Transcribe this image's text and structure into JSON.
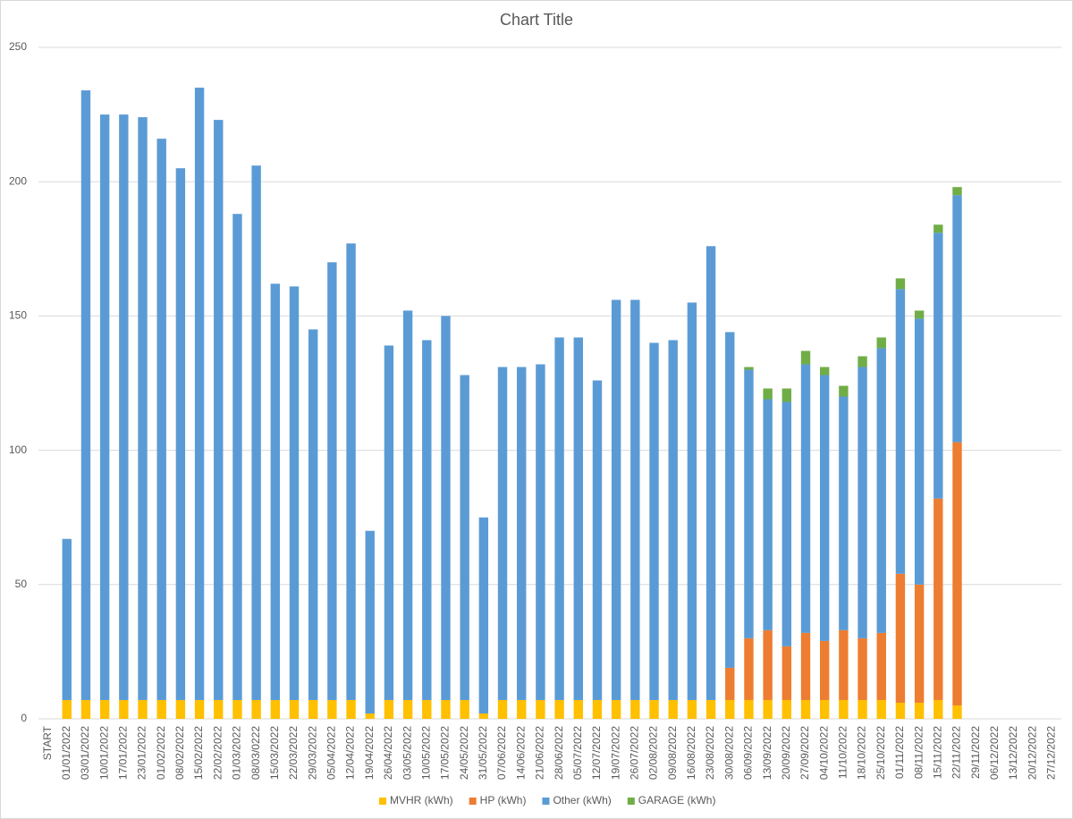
{
  "chart_data": {
    "type": "stacked_bar",
    "title": "Chart Title",
    "categories": [
      "START",
      "01/01/2022",
      "03/01/2022",
      "10/01/2022",
      "17/01/2022",
      "23/01/2022",
      "01/02/2022",
      "08/02/2022",
      "15/02/2022",
      "22/02/2022",
      "01/03/2022",
      "08/03/0222",
      "15/03/2022",
      "22/03/2022",
      "29/03/2022",
      "05/04/2022",
      "12/04/2022",
      "19/04/2022",
      "26/04/2022",
      "03/05/2022",
      "10/05/2022",
      "17/05/2022",
      "24/05/2022",
      "31/05/2022",
      "07/06/2022",
      "14/06/2022",
      "21/06/2022",
      "28/06/2022",
      "05/07/2022",
      "12/07/2022",
      "19/07/2022",
      "26/07/2022",
      "02/08/2022",
      "09/08/2022",
      "16/08/2022",
      "23/08/2022",
      "30/08/2022",
      "06/09/2022",
      "13/09/2022",
      "20/09/2022",
      "27/09/2022",
      "04/10/2022",
      "11/10/2022",
      "18/10/2022",
      "25/10/2022",
      "01/11/2022",
      "08/11/2022",
      "15/11/2022",
      "22/11/2022",
      "29/11/2022",
      "06/12/2022",
      "13/12/2022",
      "20/12/2022",
      "27/12/2022"
    ],
    "series": [
      {
        "name": "MVHR (kWh)",
        "color": "#ffc000",
        "values": [
          null,
          7,
          7,
          7,
          7,
          7,
          7,
          7,
          7,
          7,
          7,
          7,
          7,
          7,
          7,
          7,
          7,
          2,
          7,
          7,
          7,
          7,
          7,
          2,
          7,
          7,
          7,
          7,
          7,
          7,
          7,
          7,
          7,
          7,
          7,
          7,
          7,
          7,
          7,
          7,
          7,
          7,
          7,
          7,
          7,
          6,
          6,
          7,
          5,
          null,
          null,
          null,
          null,
          null
        ]
      },
      {
        "name": "HP (kWh)",
        "color": "#ed7d31",
        "values": [
          null,
          null,
          null,
          null,
          null,
          null,
          null,
          null,
          null,
          null,
          null,
          null,
          null,
          null,
          null,
          null,
          null,
          null,
          null,
          null,
          null,
          null,
          null,
          null,
          null,
          null,
          null,
          null,
          null,
          null,
          null,
          null,
          null,
          null,
          null,
          null,
          12,
          23,
          26,
          20,
          25,
          22,
          26,
          23,
          25,
          48,
          44,
          75,
          98,
          null,
          null,
          null,
          null,
          null
        ]
      },
      {
        "name": "Other (kWh)",
        "color": "#5b9bd5",
        "values": [
          null,
          60,
          227,
          218,
          218,
          217,
          209,
          198,
          228,
          216,
          181,
          199,
          155,
          154,
          138,
          163,
          170,
          68,
          132,
          145,
          134,
          143,
          121,
          73,
          124,
          124,
          125,
          135,
          135,
          119,
          149,
          149,
          133,
          134,
          148,
          169,
          125,
          100,
          86,
          91,
          100,
          99,
          87,
          101,
          106,
          106,
          99,
          99,
          92,
          null,
          null,
          null,
          null,
          null
        ]
      },
      {
        "name": "GARAGE (kWh)",
        "color": "#70ad47",
        "values": [
          null,
          null,
          null,
          null,
          null,
          null,
          null,
          null,
          null,
          null,
          null,
          null,
          null,
          null,
          null,
          null,
          null,
          null,
          null,
          null,
          null,
          null,
          null,
          null,
          null,
          null,
          null,
          null,
          null,
          null,
          null,
          null,
          null,
          null,
          null,
          null,
          null,
          1,
          4,
          5,
          5,
          3,
          4,
          4,
          4,
          4,
          3,
          3,
          3,
          null,
          null,
          null,
          null,
          null
        ]
      }
    ],
    "ylim": [
      0,
      250
    ],
    "yticks": [
      0,
      50,
      100,
      150,
      200,
      250
    ],
    "grid": true,
    "legend": "bottom"
  }
}
